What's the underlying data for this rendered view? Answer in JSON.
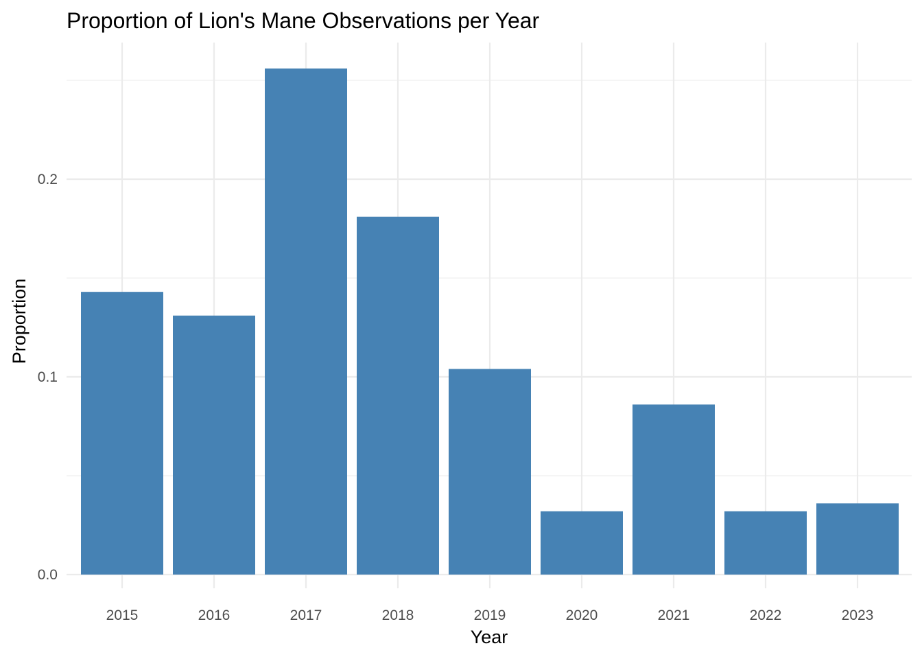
{
  "chart_data": {
    "type": "bar",
    "title": "Proportion of Lion's Mane Observations per Year",
    "xlabel": "Year",
    "ylabel": "Proportion",
    "categories": [
      "2015",
      "2016",
      "2017",
      "2018",
      "2019",
      "2020",
      "2021",
      "2022",
      "2023"
    ],
    "values": [
      0.143,
      0.131,
      0.256,
      0.181,
      0.104,
      0.032,
      0.086,
      0.032,
      0.036
    ],
    "ylim": [
      0,
      0.27
    ],
    "yticks": [
      0.0,
      0.1,
      0.2
    ],
    "ytick_labels": [
      "0.0",
      "0.1",
      "0.2"
    ],
    "grid": true,
    "legend": "none",
    "bar_color": "#4682B4",
    "grid_color": "#EBEBEB",
    "background": "#FFFFFF"
  }
}
